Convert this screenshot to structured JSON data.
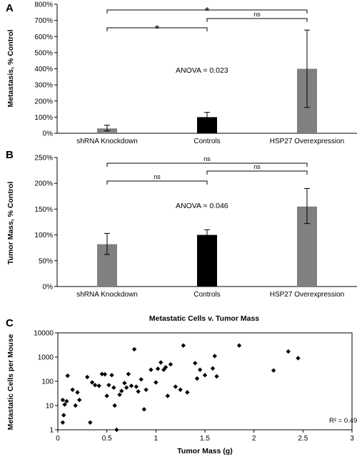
{
  "colors": {
    "gray_bar": "#808080",
    "black_bar": "#000000",
    "axis": "#000000",
    "marker": "#000000"
  },
  "chart_data": [
    {
      "panel": "A",
      "type": "bar",
      "categories": [
        "shRNA Knockdown",
        "Controls",
        "HSP27 Overexpression"
      ],
      "values": [
        30,
        100,
        400
      ],
      "errors": [
        [
          15,
          50
        ],
        [
          70,
          130
        ],
        [
          160,
          640
        ]
      ],
      "bar_colors": [
        "#808080",
        "#000000",
        "#808080"
      ],
      "ylabel": "Metastasis, % Control",
      "ylim": [
        0,
        800
      ],
      "yticks": [
        0,
        100,
        200,
        300,
        400,
        500,
        600,
        700,
        800
      ],
      "tick_suffix": "%",
      "annotation": "ANOVA = 0.023",
      "comparisons": [
        {
          "from": 0,
          "to": 2,
          "label": "*"
        },
        {
          "from": 1,
          "to": 2,
          "label": "ns"
        },
        {
          "from": 0,
          "to": 1,
          "label": "*"
        }
      ]
    },
    {
      "panel": "B",
      "type": "bar",
      "categories": [
        "shRNA Knockdown",
        "Controls",
        "HSP27 Overexpression"
      ],
      "values": [
        82,
        100,
        155
      ],
      "errors": [
        [
          62,
          103
        ],
        [
          90,
          110
        ],
        [
          122,
          190
        ]
      ],
      "bar_colors": [
        "#808080",
        "#000000",
        "#808080"
      ],
      "ylabel": "Tumor Mass, % Control",
      "ylim": [
        0,
        250
      ],
      "yticks": [
        0,
        50,
        100,
        150,
        200,
        250
      ],
      "tick_suffix": "%",
      "annotation": "ANOVA = 0.046",
      "comparisons": [
        {
          "from": 0,
          "to": 2,
          "label": "ns"
        },
        {
          "from": 1,
          "to": 2,
          "label": "ns"
        },
        {
          "from": 0,
          "to": 1,
          "label": "ns"
        }
      ]
    },
    {
      "panel": "C",
      "type": "scatter",
      "title": "Metastatic Cells v. Tumor Mass",
      "xlabel": "Tumor Mass (g)",
      "ylabel": "Metastatic Cells per Mouse",
      "xlim": [
        0,
        3
      ],
      "xticks": [
        0,
        0.5,
        1,
        1.5,
        2,
        2.5,
        3
      ],
      "yscale": "log",
      "ylim": [
        1,
        10000
      ],
      "yticks": [
        1,
        10,
        100,
        1000,
        10000
      ],
      "annotation": "R² = 0.49",
      "points": [
        [
          0.05,
          17
        ],
        [
          0.06,
          4
        ],
        [
          0.05,
          2
        ],
        [
          0.07,
          11
        ],
        [
          0.09,
          15
        ],
        [
          0.1,
          170
        ],
        [
          0.15,
          45
        ],
        [
          0.18,
          10
        ],
        [
          0.2,
          35
        ],
        [
          0.22,
          17
        ],
        [
          0.3,
          150
        ],
        [
          0.33,
          2
        ],
        [
          0.35,
          90
        ],
        [
          0.38,
          70
        ],
        [
          0.42,
          65
        ],
        [
          0.45,
          200
        ],
        [
          0.48,
          195
        ],
        [
          0.5,
          25
        ],
        [
          0.52,
          70
        ],
        [
          0.55,
          180
        ],
        [
          0.57,
          55
        ],
        [
          0.58,
          10
        ],
        [
          0.6,
          1
        ],
        [
          0.63,
          28
        ],
        [
          0.65,
          40
        ],
        [
          0.68,
          85
        ],
        [
          0.7,
          55
        ],
        [
          0.72,
          200
        ],
        [
          0.75,
          65
        ],
        [
          0.78,
          2100
        ],
        [
          0.8,
          60
        ],
        [
          0.82,
          38
        ],
        [
          0.85,
          120
        ],
        [
          0.88,
          7
        ],
        [
          0.9,
          45
        ],
        [
          0.95,
          300
        ],
        [
          1.0,
          90
        ],
        [
          1.02,
          330
        ],
        [
          1.05,
          600
        ],
        [
          1.08,
          300
        ],
        [
          1.1,
          380
        ],
        [
          1.12,
          25
        ],
        [
          1.15,
          500
        ],
        [
          1.2,
          60
        ],
        [
          1.25,
          45
        ],
        [
          1.28,
          3000
        ],
        [
          1.32,
          35
        ],
        [
          1.4,
          560
        ],
        [
          1.42,
          130
        ],
        [
          1.45,
          300
        ],
        [
          1.5,
          180
        ],
        [
          1.58,
          340
        ],
        [
          1.6,
          1100
        ],
        [
          1.62,
          160
        ],
        [
          1.85,
          3000
        ],
        [
          2.2,
          280
        ],
        [
          2.35,
          1700
        ],
        [
          2.45,
          900
        ]
      ]
    }
  ]
}
